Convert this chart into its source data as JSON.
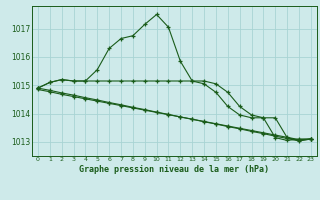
{
  "title": "Graphe pression niveau de la mer (hPa)",
  "background_color": "#ceeaea",
  "grid_color": "#a8d4d4",
  "line_color": "#1a5c1a",
  "ylim": [
    1012.5,
    1017.8
  ],
  "yticks": [
    1013,
    1014,
    1015,
    1016,
    1017
  ],
  "xlim": [
    -0.5,
    23.5
  ],
  "line1": [
    1014.9,
    1015.1,
    1015.2,
    1015.15,
    1015.15,
    1015.55,
    1016.3,
    1016.65,
    1016.75,
    1017.15,
    1017.5,
    1017.05,
    1015.85,
    1015.15,
    1015.15,
    1015.05,
    1014.75,
    1014.25,
    1013.95,
    1013.85,
    1013.85,
    1013.15,
    1013.05,
    1013.1
  ],
  "line2": [
    1014.9,
    1015.1,
    1015.2,
    1015.15,
    1015.15,
    1015.15,
    1015.15,
    1015.15,
    1015.15,
    1015.15,
    1015.15,
    1015.15,
    1015.15,
    1015.15,
    1015.05,
    1014.75,
    1014.25,
    1013.95,
    1013.85,
    1013.85,
    1013.15,
    1013.05,
    1013.1,
    1013.1
  ],
  "line3": [
    1014.85,
    1014.77,
    1014.68,
    1014.6,
    1014.52,
    1014.44,
    1014.36,
    1014.28,
    1014.2,
    1014.12,
    1014.04,
    1013.96,
    1013.88,
    1013.8,
    1013.72,
    1013.64,
    1013.56,
    1013.48,
    1013.4,
    1013.32,
    1013.24,
    1013.16,
    1013.08,
    1013.1
  ],
  "line4": [
    1014.9,
    1014.82,
    1014.73,
    1014.65,
    1014.56,
    1014.48,
    1014.39,
    1014.31,
    1014.22,
    1014.14,
    1014.05,
    1013.97,
    1013.88,
    1013.8,
    1013.71,
    1013.63,
    1013.54,
    1013.46,
    1013.37,
    1013.29,
    1013.2,
    1013.12,
    1013.03,
    1013.1
  ]
}
